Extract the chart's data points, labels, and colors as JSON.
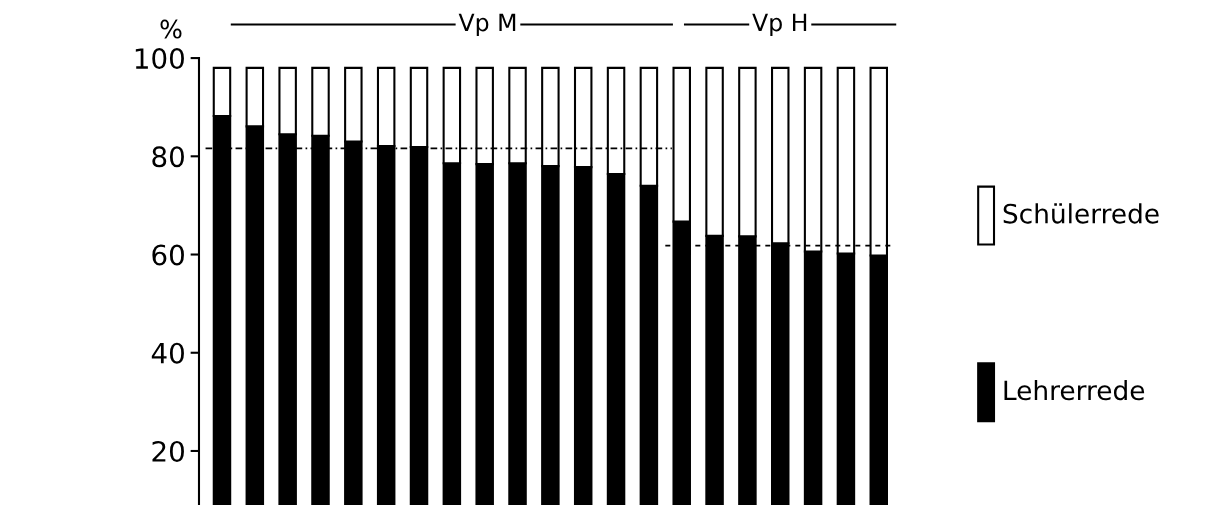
{
  "chart_data": {
    "type": "bar",
    "stacked": true,
    "ylabel": "%",
    "categories": [
      null,
      null,
      null,
      null,
      null,
      null,
      null,
      null,
      null,
      null,
      null,
      null,
      null,
      null,
      null,
      null,
      null,
      null,
      null,
      null,
      null
    ],
    "series": [
      {
        "name": "Lehrerrede",
        "color": "#000000",
        "values": [
          88.2,
          86.1,
          84.5,
          84.2,
          83,
          82.1,
          81.9,
          78.6,
          78.4,
          78.6,
          78,
          77.8,
          76.4,
          74,
          66.7,
          63.8,
          63.7,
          62.3,
          60.6,
          60.2,
          59.8
        ]
      },
      {
        "name": "Schülerrede",
        "color": "#ffffff",
        "values": [
          9.8,
          11.9,
          13.5,
          13.8,
          15,
          15.9,
          16.1,
          19.4,
          19.6,
          19.4,
          20,
          20.2,
          21.6,
          24,
          31.3,
          34.2,
          34.3,
          35.7,
          37.4,
          37.8,
          38.2
        ]
      }
    ],
    "ylim": [
      9,
      100
    ],
    "yticks": [
      20,
      40,
      60,
      80,
      100
    ],
    "ref_lines": [
      {
        "axis": "y",
        "value": 81.6,
        "line_style": "dashdot"
      },
      {
        "axis": "y",
        "value": 61.8,
        "line_style": "dashed"
      }
    ],
    "annotations": [
      "Vp M",
      "Vp H"
    ],
    "legend": "right",
    "grid": false
  }
}
